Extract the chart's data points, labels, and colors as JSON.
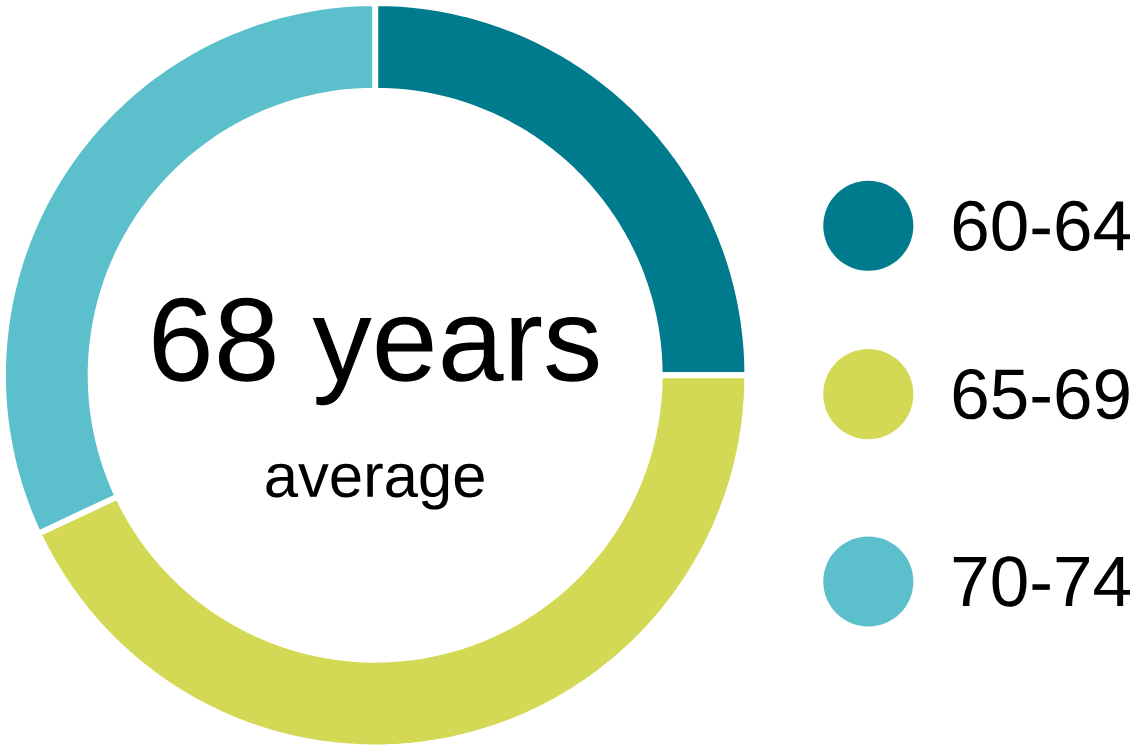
{
  "chart_data": {
    "type": "donut",
    "categories": [
      "60-64",
      "65-69",
      "70-74"
    ],
    "values": [
      25,
      43,
      32
    ],
    "colors": [
      "#007b8e",
      "#d4d955",
      "#5cc0cc"
    ],
    "annotations": [
      "68 years",
      "average"
    ],
    "legend": "right"
  }
}
